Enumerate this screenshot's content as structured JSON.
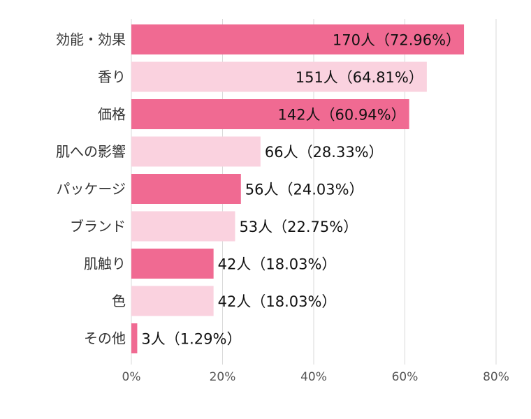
{
  "chart_data": {
    "type": "bar",
    "orientation": "horizontal",
    "categories": [
      "効能・効果",
      "香り",
      "価格",
      "肌への影響",
      "パッケージ",
      "ブランド",
      "肌触り",
      "色",
      "その他"
    ],
    "values": [
      72.96,
      64.81,
      60.94,
      28.33,
      24.03,
      22.75,
      18.03,
      18.03,
      1.29
    ],
    "data_labels": [
      "170人（72.96%）",
      "151人（64.81%）",
      "142人（60.94%）",
      "66人（28.33%）",
      "56人（24.03%）",
      "53人（22.75%）",
      "42人（18.03%）",
      "42人（18.03%）",
      "3人（1.29%）"
    ],
    "xlim": [
      0,
      80
    ],
    "xticks": [
      0,
      20,
      40,
      60,
      80
    ],
    "xtick_labels": [
      "0%",
      "20%",
      "40%",
      "60%",
      "80%"
    ],
    "grid": true,
    "title": "",
    "xlabel": "",
    "ylabel": "",
    "colors": [
      "#f06a92",
      "#fad2df"
    ]
  }
}
